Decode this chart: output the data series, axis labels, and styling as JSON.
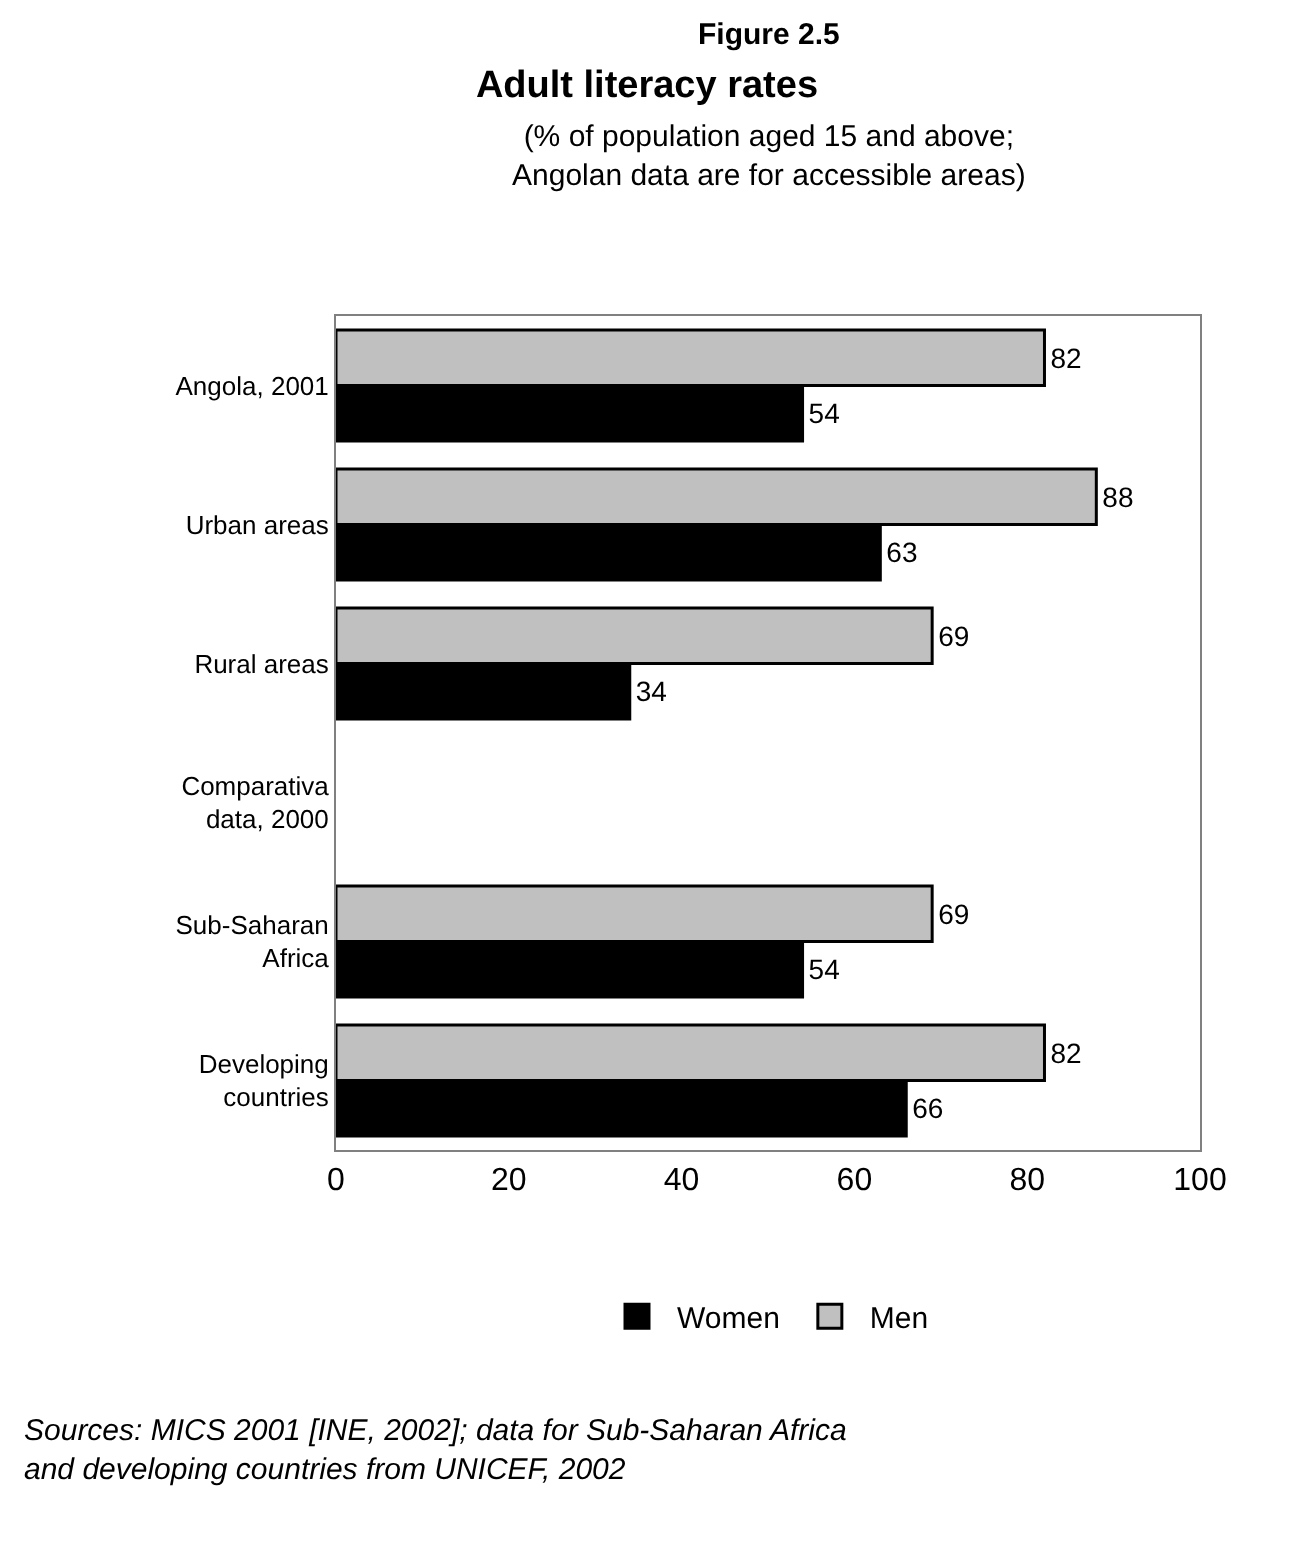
{
  "chart_data": {
    "type": "bar",
    "orientation": "horizontal",
    "title": "Adult literacy rates",
    "subtitle": "(% of population aged 15 and above; Angolan data are for accessible areas)",
    "categories": [
      "Angola, 2001",
      "Urban areas",
      "Rural areas",
      "Comparativa data, 2000",
      "Sub-Saharan Africa",
      "Developing countries"
    ],
    "series": [
      {
        "name": "Men",
        "color": "#c0c0c0",
        "values": [
          82,
          88,
          69,
          null,
          69,
          82
        ]
      },
      {
        "name": "Women",
        "color": "#000000",
        "values": [
          54,
          63,
          34,
          null,
          54,
          66
        ]
      }
    ],
    "xlim": [
      0,
      100
    ],
    "xticks": [
      0,
      20,
      40,
      60,
      80,
      100
    ],
    "data_labels": true,
    "grid": false,
    "legend": "bottom",
    "annotations": [
      "Figure 2.5",
      "Sources: MICS 2001 [INE, 2002]; data for Sub-Saharan Africa and developing countries from UNICEF, 2002"
    ]
  }
}
